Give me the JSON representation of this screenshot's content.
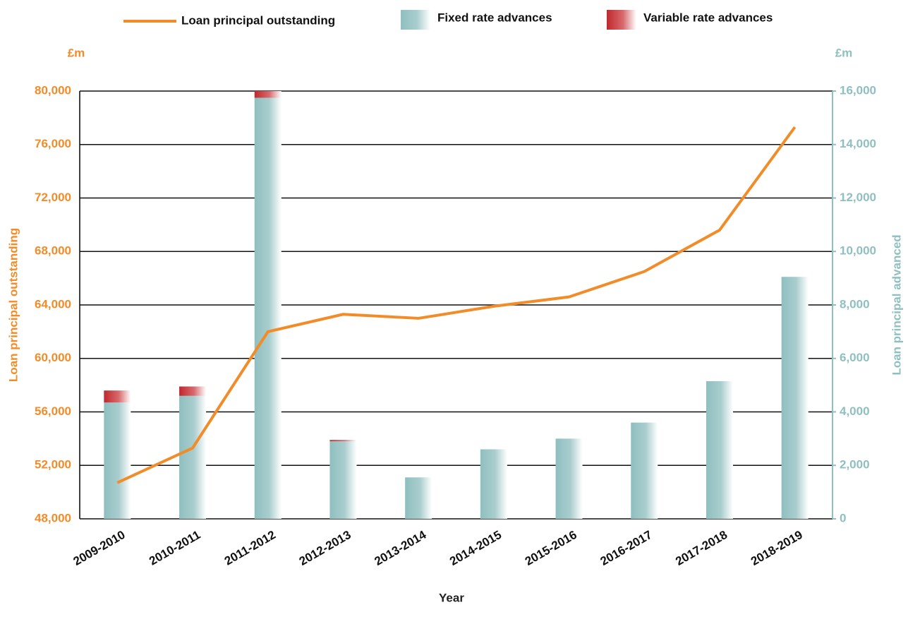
{
  "chart_data": {
    "type": "bar-line",
    "x_label": "Year",
    "y_label": "Loan principal outstanding",
    "y2_label": "Loan principal advanced",
    "y_unit": "£m",
    "y2_unit": "£m",
    "categories": [
      "2009-2010",
      "2010-2011",
      "2011-2012",
      "2012-2013",
      "2013-2014",
      "2014-2015",
      "2015-2016",
      "2016-2017",
      "2017-2018",
      "2018-2019"
    ],
    "series": [
      {
        "name": "Loan principal outstanding",
        "type": "line",
        "color": "#f28c28",
        "axis": "y",
        "values": [
          50700,
          53300,
          62000,
          63300,
          63000,
          63900,
          64600,
          66500,
          69600,
          77300
        ]
      },
      {
        "name": "Fixed rate advances",
        "type": "bar",
        "color": "#8fbfc0",
        "axis": "y2",
        "values": [
          4350,
          4600,
          15750,
          2900,
          1550,
          2600,
          3000,
          3600,
          5150,
          9050
        ]
      },
      {
        "name": "Variable rate advances",
        "type": "bar",
        "color": "#c0282d",
        "axis": "y2",
        "values": [
          450,
          350,
          250,
          50,
          0,
          0,
          0,
          0,
          0,
          0
        ]
      }
    ],
    "ylim": [
      48000,
      80000
    ],
    "yticks": [
      {
        "value": 48000,
        "label": "48,000"
      },
      {
        "value": 52000,
        "label": "52,000"
      },
      {
        "value": 56000,
        "label": "56,000"
      },
      {
        "value": 60000,
        "label": "60,000"
      },
      {
        "value": 64000,
        "label": "64,000"
      },
      {
        "value": 68000,
        "label": "68,000"
      },
      {
        "value": 72000,
        "label": "72,000"
      },
      {
        "value": 76000,
        "label": "76,000"
      },
      {
        "value": 80000,
        "label": "80,000"
      }
    ],
    "y2lim": [
      0,
      16000
    ],
    "y2ticks": [
      0,
      {
        "value": 2000,
        "label": "2,000"
      },
      {
        "value": 4000,
        "label": "4,000"
      },
      {
        "value": 6000,
        "label": "6,000"
      },
      {
        "value": 8000,
        "label": "8,000"
      },
      {
        "value": 10000,
        "label": "10,000"
      },
      {
        "value": 12000,
        "label": "12,000"
      },
      {
        "value": 14000,
        "label": "14,000"
      },
      {
        "value": 16000,
        "label": "16,000"
      }
    ],
    "grid": true,
    "legend": "top"
  }
}
